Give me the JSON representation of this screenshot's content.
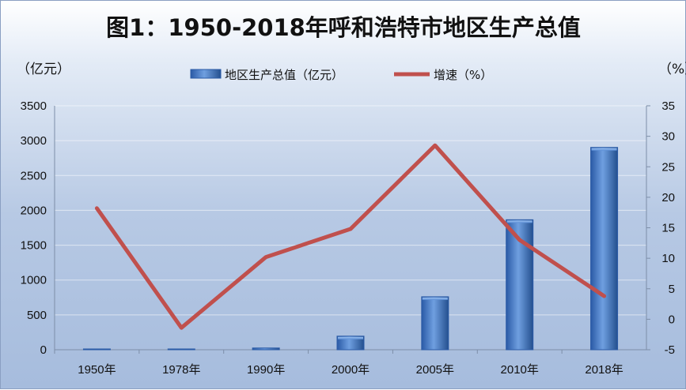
{
  "chart_data": {
    "type": "bar",
    "title": "图1：1950-2018年呼和浩特市地区生产总值",
    "left_unit": "（亿元）",
    "right_unit": "（%）",
    "categories": [
      "1950年",
      "1978年",
      "1990年",
      "2000年",
      "2005年",
      "2010年",
      "2018年"
    ],
    "series": [
      {
        "name": "地区生产总值（亿元）",
        "type": "bar",
        "axis": "left",
        "color": "#3f75c0",
        "values": [
          0.5,
          3,
          25,
          195,
          760,
          1865,
          2903
        ]
      },
      {
        "name": "增速（%）",
        "type": "line",
        "axis": "right",
        "color": "#c0504d",
        "values": [
          18.2,
          -1.4,
          10.2,
          14.8,
          28.5,
          13.0,
          3.8
        ]
      }
    ],
    "y_left": {
      "min": 0,
      "max": 3500,
      "step": 500
    },
    "y_right": {
      "min": -5,
      "max": 35,
      "step": 5
    },
    "legend_position": "top-center",
    "grid": true
  }
}
